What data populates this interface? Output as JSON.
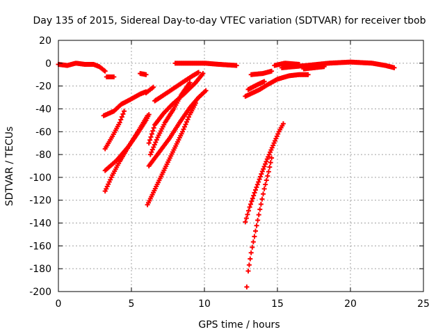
{
  "chart_data": {
    "type": "scatter",
    "title": "Day 135 of 2015, Sidereal Day-to-day VTEC variation (SDTVAR) for receiver tbob",
    "xlabel": "GPS time / hours",
    "ylabel": "SDTVAR / TECUs",
    "xlim": [
      0,
      25
    ],
    "ylim": [
      -200,
      20
    ],
    "xticks": [
      0,
      5,
      10,
      15,
      20,
      25
    ],
    "yticks": [
      20,
      0,
      -20,
      -40,
      -60,
      -80,
      -100,
      -120,
      -140,
      -160,
      -180,
      -200
    ],
    "grid": true,
    "marker": "plus",
    "color": "#ff0000",
    "tracks": [
      [
        [
          0,
          -1
        ],
        [
          0.6,
          -2
        ],
        [
          1.2,
          0
        ],
        [
          1.8,
          -1
        ],
        [
          2.4,
          -1
        ],
        [
          2.8,
          -3
        ],
        [
          3.2,
          -7
        ]
      ],
      [
        [
          3.3,
          -12
        ],
        [
          3.8,
          -12
        ]
      ],
      [
        [
          5.6,
          -9
        ],
        [
          6.0,
          -10
        ]
      ],
      [
        [
          8.0,
          0
        ],
        [
          9.2,
          0
        ],
        [
          10.0,
          0
        ],
        [
          11.0,
          -1
        ],
        [
          12.2,
          -2
        ]
      ],
      [
        [
          13.2,
          -10
        ],
        [
          14.0,
          -9
        ],
        [
          14.6,
          -7
        ]
      ],
      [
        [
          14.8,
          -2
        ],
        [
          15.5,
          0
        ],
        [
          16.5,
          -1
        ]
      ],
      [
        [
          15.3,
          -4
        ],
        [
          17.0,
          -2
        ],
        [
          18.5,
          0
        ],
        [
          20.0,
          1
        ],
        [
          21.5,
          0
        ],
        [
          22.4,
          -2
        ],
        [
          23.0,
          -4
        ]
      ],
      [
        [
          16.8,
          -5
        ],
        [
          18.2,
          -3
        ]
      ],
      [
        [
          3.1,
          -46
        ],
        [
          3.8,
          -42
        ],
        [
          4.3,
          -36
        ],
        [
          4.9,
          -32
        ],
        [
          5.6,
          -27
        ],
        [
          6.0,
          -25
        ]
      ],
      [
        [
          3.2,
          -75
        ],
        [
          3.7,
          -64
        ],
        [
          4.2,
          -52
        ],
        [
          4.5,
          -42
        ]
      ],
      [
        [
          3.2,
          -94
        ],
        [
          4.0,
          -85
        ],
        [
          4.8,
          -73
        ],
        [
          5.4,
          -62
        ],
        [
          6.0,
          -50
        ],
        [
          6.2,
          -45
        ]
      ],
      [
        [
          3.2,
          -112
        ],
        [
          3.7,
          -98
        ],
        [
          4.2,
          -86
        ],
        [
          4.8,
          -73
        ],
        [
          5.4,
          -61
        ],
        [
          6.1,
          -46
        ]
      ],
      [
        [
          6.0,
          -26
        ],
        [
          6.5,
          -21
        ]
      ],
      [
        [
          6.2,
          -70
        ],
        [
          6.6,
          -54
        ],
        [
          7.2,
          -44
        ],
        [
          7.8,
          -36
        ],
        [
          8.6,
          -27
        ],
        [
          9.4,
          -17
        ],
        [
          9.9,
          -9
        ]
      ],
      [
        [
          6.3,
          -80
        ],
        [
          6.8,
          -65
        ],
        [
          7.3,
          -52
        ],
        [
          7.9,
          -40
        ],
        [
          8.4,
          -28
        ],
        [
          9.0,
          -17
        ]
      ],
      [
        [
          6.2,
          -90
        ],
        [
          6.9,
          -78
        ],
        [
          7.6,
          -66
        ],
        [
          8.3,
          -52
        ],
        [
          9.0,
          -39
        ],
        [
          9.6,
          -30
        ],
        [
          10.1,
          -24
        ]
      ],
      [
        [
          6.1,
          -124
        ],
        [
          6.7,
          -108
        ],
        [
          7.3,
          -92
        ],
        [
          7.9,
          -76
        ],
        [
          8.5,
          -60
        ],
        [
          9.0,
          -45
        ],
        [
          9.4,
          -35
        ]
      ],
      [
        [
          6.6,
          -33
        ],
        [
          7.2,
          -28
        ],
        [
          7.9,
          -22
        ],
        [
          8.6,
          -16
        ],
        [
          9.2,
          -11
        ],
        [
          9.6,
          -8
        ]
      ],
      [
        [
          12.8,
          -29
        ],
        [
          13.3,
          -26
        ],
        [
          13.8,
          -23
        ],
        [
          14.3,
          -19
        ],
        [
          15.0,
          -14
        ],
        [
          15.8,
          -11
        ],
        [
          16.5,
          -10
        ],
        [
          17.1,
          -10
        ]
      ],
      [
        [
          13.0,
          -23
        ],
        [
          13.6,
          -19
        ],
        [
          14.1,
          -16
        ]
      ],
      [
        [
          12.8,
          -139
        ],
        [
          13.1,
          -126
        ],
        [
          13.5,
          -111
        ],
        [
          13.9,
          -97
        ],
        [
          14.3,
          -84
        ],
        [
          14.7,
          -72
        ],
        [
          15.1,
          -60
        ],
        [
          15.4,
          -53
        ]
      ],
      [
        [
          12.9,
          -196
        ],
        [
          13.0,
          -182
        ],
        [
          13.2,
          -166
        ],
        [
          13.5,
          -147
        ],
        [
          13.8,
          -128
        ],
        [
          14.1,
          -110
        ],
        [
          14.4,
          -95
        ],
        [
          14.6,
          -83
        ]
      ]
    ]
  }
}
